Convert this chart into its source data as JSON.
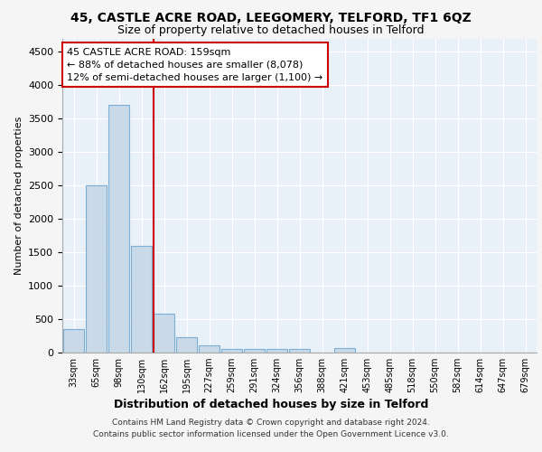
{
  "title1": "45, CASTLE ACRE ROAD, LEEGOMERY, TELFORD, TF1 6QZ",
  "title2": "Size of property relative to detached houses in Telford",
  "xlabel": "Distribution of detached houses by size in Telford",
  "ylabel": "Number of detached properties",
  "footnote1": "Contains HM Land Registry data © Crown copyright and database right 2024.",
  "footnote2": "Contains public sector information licensed under the Open Government Licence v3.0.",
  "categories": [
    "33sqm",
    "65sqm",
    "98sqm",
    "130sqm",
    "162sqm",
    "195sqm",
    "227sqm",
    "259sqm",
    "291sqm",
    "324sqm",
    "356sqm",
    "388sqm",
    "421sqm",
    "453sqm",
    "485sqm",
    "518sqm",
    "550sqm",
    "582sqm",
    "614sqm",
    "647sqm",
    "679sqm"
  ],
  "values": [
    350,
    2500,
    3700,
    1600,
    580,
    230,
    110,
    55,
    50,
    50,
    50,
    0,
    70,
    0,
    0,
    0,
    0,
    0,
    0,
    0,
    0
  ],
  "bar_color": "#c9d9e8",
  "bar_edge_color": "#7bafd4",
  "vline_pos": 3.55,
  "vline_color": "#cc0000",
  "annotation_text": "45 CASTLE ACRE ROAD: 159sqm\n← 88% of detached houses are smaller (8,078)\n12% of semi-detached houses are larger (1,100) →",
  "annotation_box_color": "#ffffff",
  "annotation_box_edge": "#cc0000",
  "ylim": [
    0,
    4700
  ],
  "yticks": [
    0,
    500,
    1000,
    1500,
    2000,
    2500,
    3000,
    3500,
    4000,
    4500
  ],
  "background_color": "#e8f0f8",
  "grid_color": "#ffffff",
  "fig_background": "#f5f5f5",
  "title1_fontsize": 10,
  "title2_fontsize": 9,
  "footnote_fontsize": 6.5,
  "xlabel_fontsize": 9,
  "ylabel_fontsize": 8
}
